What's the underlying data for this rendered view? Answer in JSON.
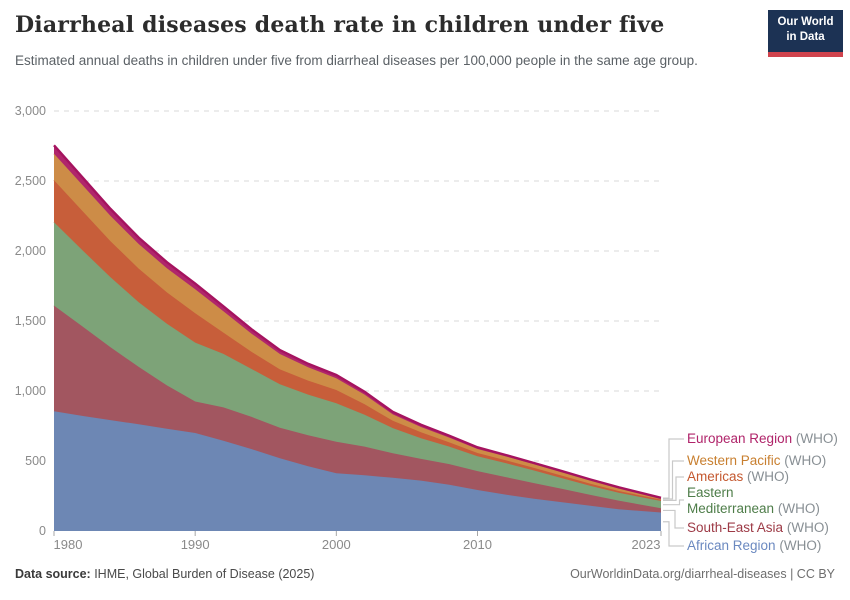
{
  "header": {
    "title": "Diarrheal diseases death rate in children under five",
    "subtitle": "Estimated annual deaths in children under five from diarrheal diseases per 100,000 people in the same age group."
  },
  "logo": {
    "line1": "Our World",
    "line2": "in Data"
  },
  "chart_data": {
    "type": "area",
    "stacked": true,
    "title": "Diarrheal diseases death rate in children under five",
    "unit": "deaths per 100,000 people in the same age group",
    "grid": "dashed horizontal",
    "legend_position": "right",
    "ylim": [
      0,
      3000
    ],
    "yticks": [
      0,
      500,
      1000,
      1500,
      2000,
      2500,
      3000
    ],
    "xticks": [
      1980,
      1990,
      2000,
      2010,
      2023
    ],
    "x": [
      1980,
      1982,
      1984,
      1986,
      1988,
      1990,
      1992,
      1994,
      1996,
      1998,
      2000,
      2002,
      2004,
      2006,
      2008,
      2010,
      2012,
      2014,
      2016,
      2018,
      2020,
      2023
    ],
    "series": [
      {
        "name": "African Region (WHO)",
        "color": "#6d87b4",
        "stroke": "#6d87b4",
        "values": [
          855,
          822,
          792,
          762,
          730,
          700,
          645,
          585,
          520,
          462,
          412,
          398,
          380,
          360,
          330,
          293,
          260,
          230,
          205,
          180,
          155,
          132
        ]
      },
      {
        "name": "South-East Asia (WHO)",
        "color": "#a25660",
        "stroke": "#a25660",
        "values": [
          755,
          640,
          520,
          410,
          310,
          225,
          238,
          230,
          218,
          222,
          226,
          205,
          175,
          155,
          148,
          135,
          125,
          112,
          96,
          78,
          62,
          30
        ]
      },
      {
        "name": "Eastern Mediterranean (WHO)",
        "color": "#7da378",
        "stroke": "#7da378",
        "values": [
          595,
          545,
          500,
          462,
          440,
          421,
          382,
          342,
          310,
          290,
          274,
          228,
          180,
          148,
          125,
          106,
          100,
          90,
          76,
          64,
          56,
          52
        ]
      },
      {
        "name": "Americas (WHO)",
        "color": "#c75e3a",
        "stroke": "#c75e3a",
        "values": [
          300,
          280,
          258,
          240,
          224,
          210,
          152,
          122,
          106,
          100,
          95,
          75,
          52,
          42,
          30,
          23,
          21,
          19,
          17,
          15,
          13,
          10
        ]
      },
      {
        "name": "Western Pacific (WHO)",
        "color": "#cd8c47",
        "stroke": "#cd8c47",
        "values": [
          190,
          186,
          181,
          176,
          173,
          171,
          152,
          130,
          110,
          95,
          84,
          68,
          46,
          38,
          34,
          29,
          27,
          26,
          25,
          24,
          20,
          9
        ]
      },
      {
        "name": "European Region (WHO)",
        "color": "#b0266c",
        "stroke": "#a5135f",
        "values": [
          60,
          55,
          50,
          46,
          43,
          40,
          36,
          32,
          28,
          25,
          23,
          21,
          18,
          16,
          14,
          12,
          10,
          9,
          8,
          7,
          6,
          4
        ]
      }
    ]
  },
  "legend": {
    "items": [
      {
        "label": "European Region",
        "suffix": "(WHO)",
        "color": "#b0246a",
        "series": "European Region (WHO)"
      },
      {
        "label": "Western Pacific",
        "suffix": "(WHO)",
        "color": "#c87f2f",
        "series": "Western Pacific (WHO)"
      },
      {
        "label": "Americas",
        "suffix": "(WHO)",
        "color": "#c4582f",
        "series": "Americas (WHO)"
      },
      {
        "label": "Eastern\nMediterranean",
        "suffix": "(WHO)",
        "color": "#4e7d49",
        "series": "Eastern Mediterranean (WHO)"
      },
      {
        "label": "South-East Asia",
        "suffix": "(WHO)",
        "color": "#9d3a46",
        "series": "South-East Asia (WHO)"
      },
      {
        "label": "African Region",
        "suffix": "(WHO)",
        "color": "#6b89c0",
        "series": "African Region (WHO)"
      }
    ]
  },
  "footer": {
    "source_label": "Data source:",
    "source_text": " IHME, Global Burden of Disease (2025)",
    "right_text": "OurWorldinData.org/diarrheal-diseases | CC BY"
  }
}
